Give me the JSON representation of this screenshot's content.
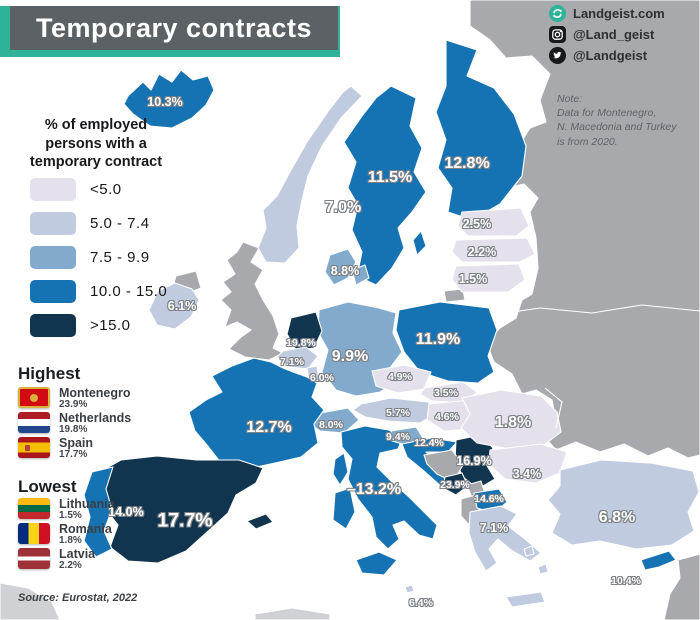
{
  "title": "Temporary contracts",
  "branding": {
    "site": "Landgeist.com",
    "instagram": "@Land_geist",
    "twitter": "@Landgeist",
    "logo_color": "#2eb399"
  },
  "note": {
    "lines": [
      "Note:",
      "Data for Montenegro,",
      "N. Macedonia and Turkey",
      "is from 2020."
    ]
  },
  "legend": {
    "title_lines": [
      "% of employed",
      "persons with a",
      "temporary contract"
    ],
    "classes": [
      {
        "label": "<5.0",
        "color": "#e4e1ec"
      },
      {
        "label": "5.0 - 7.4",
        "color": "#c1cbdf"
      },
      {
        "label": "7.5 - 9.9",
        "color": "#81aacd"
      },
      {
        "label": "10.0 - 15.0",
        "color": "#1673b3"
      },
      {
        "label": ">15.0",
        "color": "#11354f"
      }
    ]
  },
  "highest": {
    "heading": "Highest",
    "entries": [
      {
        "country": "Montenegro",
        "value": "23.9%",
        "flag": "montenegro"
      },
      {
        "country": "Netherlands",
        "value": "19.8%",
        "flag": "netherlands"
      },
      {
        "country": "Spain",
        "value": "17.7%",
        "flag": "spain"
      }
    ]
  },
  "lowest": {
    "heading": "Lowest",
    "entries": [
      {
        "country": "Lithuania",
        "value": "1.5%",
        "flag": "lithuania"
      },
      {
        "country": "Romania",
        "value": "1.8%",
        "flag": "romania"
      },
      {
        "country": "Latvia",
        "value": "2.2%",
        "flag": "latvia"
      }
    ]
  },
  "source": "Source: Eurostat, 2022",
  "map": {
    "colors": {
      "no_data": "#a7a9ac",
      "land": "#cfd1d4",
      "sea": "#ffffff",
      "border": "#ffffff"
    },
    "countries": [
      {
        "id": "east",
        "band": "nodata"
      },
      {
        "id": "uk",
        "band": "nodata"
      },
      {
        "id": "nireland",
        "band": "nodata"
      },
      {
        "id": "kaliningrad",
        "band": "nodata"
      },
      {
        "id": "africa1",
        "band": "land"
      },
      {
        "id": "africa2",
        "band": "land"
      },
      {
        "id": "mideast",
        "band": "nodata"
      },
      {
        "id": "iceland",
        "band": 4
      },
      {
        "id": "norway",
        "band": 2
      },
      {
        "id": "sweden",
        "band": 4
      },
      {
        "id": "gotland",
        "band": 4
      },
      {
        "id": "finland",
        "band": 4
      },
      {
        "id": "estonia",
        "band": 1
      },
      {
        "id": "latvia",
        "band": 1
      },
      {
        "id": "lithuania",
        "band": 1
      },
      {
        "id": "denmark",
        "band": 3
      },
      {
        "id": "denmark2",
        "band": 3
      },
      {
        "id": "ireland",
        "band": 2
      },
      {
        "id": "germany",
        "band": 3
      },
      {
        "id": "netherlands",
        "band": 5
      },
      {
        "id": "belgium",
        "band": 2
      },
      {
        "id": "luxembourg",
        "band": 2
      },
      {
        "id": "poland",
        "band": 4
      },
      {
        "id": "czechia",
        "band": 1
      },
      {
        "id": "slovakia",
        "band": 1
      },
      {
        "id": "austria",
        "band": 2
      },
      {
        "id": "hungary",
        "band": 1
      },
      {
        "id": "switzerland",
        "band": 3
      },
      {
        "id": "france",
        "band": 4
      },
      {
        "id": "corsica",
        "band": 4
      },
      {
        "id": "sardinia",
        "band": 4
      },
      {
        "id": "italy",
        "band": 4
      },
      {
        "id": "sicily",
        "band": 4
      },
      {
        "id": "malta",
        "band": 2
      },
      {
        "id": "slovenia",
        "band": 3
      },
      {
        "id": "croatia",
        "band": 4
      },
      {
        "id": "serbia",
        "band": 5
      },
      {
        "id": "bosnia",
        "band": "nodata"
      },
      {
        "id": "kosovo",
        "band": "nodata"
      },
      {
        "id": "montenegro",
        "band": 5
      },
      {
        "id": "albania",
        "band": "nodata"
      },
      {
        "id": "nmacedonia",
        "band": 4
      },
      {
        "id": "romania",
        "band": 1
      },
      {
        "id": "bulgaria",
        "band": 1
      },
      {
        "id": "greece",
        "band": 2
      },
      {
        "id": "crete",
        "band": 2
      },
      {
        "id": "aegean1",
        "band": 2
      },
      {
        "id": "aegean2",
        "band": 2
      },
      {
        "id": "turkey",
        "band": 2
      },
      {
        "id": "cyprus",
        "band": 4
      },
      {
        "id": "spain",
        "band": 5
      },
      {
        "id": "balearics",
        "band": 5
      },
      {
        "id": "portugal",
        "band": 4
      }
    ],
    "labels": [
      {
        "id": "iceland",
        "country": "Iceland",
        "value": "10.3%"
      },
      {
        "id": "norway",
        "country": "Norway",
        "value": "7.0%"
      },
      {
        "id": "sweden",
        "country": "Sweden",
        "value": "11.5%"
      },
      {
        "id": "finland",
        "country": "Finland",
        "value": "12.8%"
      },
      {
        "id": "estonia",
        "country": "Estonia",
        "value": "2.5%"
      },
      {
        "id": "latvia",
        "country": "Latvia",
        "value": "2.2%"
      },
      {
        "id": "lithuania",
        "country": "Lithuania",
        "value": "1.5%"
      },
      {
        "id": "denmark",
        "country": "Denmark",
        "value": "8.8%"
      },
      {
        "id": "ireland",
        "country": "Ireland",
        "value": "6.1%"
      },
      {
        "id": "netherlands",
        "country": "Netherlands",
        "value": "19.8%"
      },
      {
        "id": "belgium",
        "country": "Belgium",
        "value": "7.1%"
      },
      {
        "id": "luxembourg",
        "country": "Luxembourg",
        "value": "6.0%"
      },
      {
        "id": "germany",
        "country": "Germany",
        "value": "9.9%"
      },
      {
        "id": "poland",
        "country": "Poland",
        "value": "11.9%"
      },
      {
        "id": "czechia",
        "country": "Czechia",
        "value": "4.9%"
      },
      {
        "id": "slovakia",
        "country": "Slovakia",
        "value": "3.5%"
      },
      {
        "id": "austria",
        "country": "Austria",
        "value": "5.7%"
      },
      {
        "id": "hungary",
        "country": "Hungary",
        "value": "4.6%"
      },
      {
        "id": "switzerland",
        "country": "Switzerland",
        "value": "8.0%"
      },
      {
        "id": "france",
        "country": "France",
        "value": "12.7%"
      },
      {
        "id": "italy",
        "country": "Italy",
        "value": "13.2%"
      },
      {
        "id": "slovenia",
        "country": "Slovenia",
        "value": "9.4%"
      },
      {
        "id": "croatia",
        "country": "Croatia",
        "value": "12.4%"
      },
      {
        "id": "romania",
        "country": "Romania",
        "value": "1.8%"
      },
      {
        "id": "serbia",
        "country": "Serbia",
        "value": "16.9%"
      },
      {
        "id": "bulgaria",
        "country": "Bulgaria",
        "value": "3.4%"
      },
      {
        "id": "montenegro",
        "country": "Montenegro",
        "value": "23.9%"
      },
      {
        "id": "nmacedonia",
        "country": "North Macedonia",
        "value": "14.6%"
      },
      {
        "id": "greece",
        "country": "Greece",
        "value": "7.1%"
      },
      {
        "id": "turkey",
        "country": "Turkey",
        "value": "6.8%"
      },
      {
        "id": "cyprus",
        "country": "Cyprus",
        "value": "10.4%"
      },
      {
        "id": "malta",
        "country": "Malta",
        "value": "6.4%"
      },
      {
        "id": "spain",
        "country": "Spain",
        "value": "17.7%"
      },
      {
        "id": "portugal",
        "country": "Portugal",
        "value": "14.0%"
      }
    ]
  }
}
